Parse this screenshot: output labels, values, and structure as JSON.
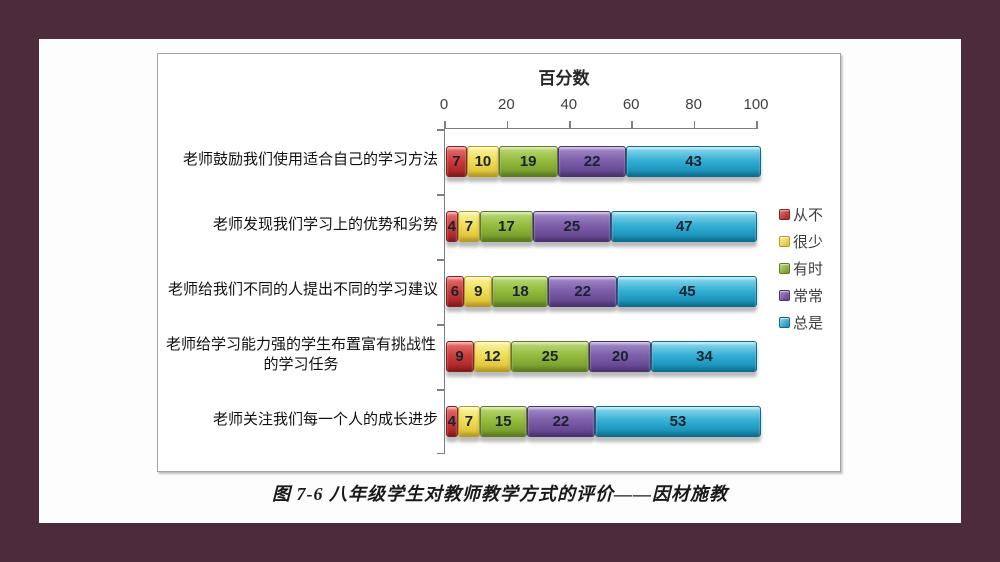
{
  "page": {
    "border_color": "#4e2b3a",
    "slide_background": "#fdfdfd"
  },
  "chart_data": {
    "type": "bar",
    "orientation": "horizontal",
    "stacked": true,
    "title": "百分数",
    "caption": "图 7-6  八年级学生对教师教学方式的评价——因材施教",
    "xlim": [
      0,
      100
    ],
    "x_ticks": [
      "0",
      "20",
      "40",
      "60",
      "80",
      "100"
    ],
    "grid": false,
    "legend_position": "right",
    "categories": [
      "老师鼓励我们使用适合自己的学习方法",
      "老师发现我们学习上的优势和劣势",
      "老师给我们不同的人提出不同的学习建议",
      "老师给学习能力强的学生布置富有挑战性的学习任务",
      "老师关注我们每一个人的成长进步"
    ],
    "series": [
      {
        "name": "从不",
        "values": [
          7,
          4,
          6,
          9,
          4
        ],
        "color": {
          "light": "#e8716d",
          "main": "#cc3b3b",
          "dark": "#9e1f23",
          "border": "#8a1a1e"
        }
      },
      {
        "name": "很少",
        "values": [
          10,
          7,
          9,
          12,
          7
        ],
        "color": {
          "light": "#faf3a0",
          "main": "#f0de55",
          "dark": "#d9bc2e",
          "border": "#b89a22"
        }
      },
      {
        "name": "有时",
        "values": [
          19,
          17,
          18,
          25,
          15
        ],
        "color": {
          "light": "#bcd977",
          "main": "#93bb3d",
          "dark": "#6f9427",
          "border": "#5d7c1f"
        }
      },
      {
        "name": "常常",
        "values": [
          22,
          25,
          22,
          20,
          22
        ],
        "color": {
          "light": "#a48cc9",
          "main": "#7c5da9",
          "dark": "#5b3f87",
          "border": "#4a3270"
        }
      },
      {
        "name": "总是",
        "values": [
          43,
          47,
          45,
          34,
          53
        ],
        "color": {
          "light": "#8fdbee",
          "main": "#32aed4",
          "dark": "#1186ad",
          "border": "#0d6c8d"
        }
      }
    ]
  }
}
